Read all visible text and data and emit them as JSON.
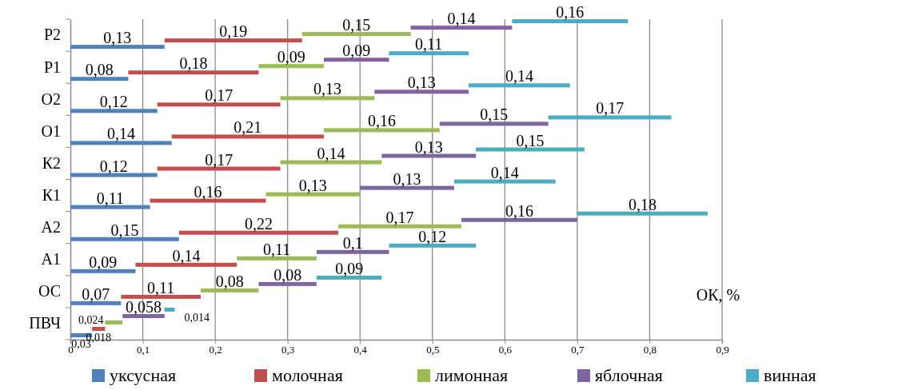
{
  "chart_data": {
    "type": "bar",
    "orientation": "horizontal",
    "stacked": true,
    "xlabel": "ОК, %",
    "categories": [
      "Р2",
      "Р1",
      "О2",
      "О1",
      "К2",
      "К1",
      "А2",
      "А1",
      "ОС",
      "ПВЧ"
    ],
    "series": [
      {
        "name": "уксусная",
        "color": "#4f81bd",
        "values": [
          0.13,
          0.08,
          0.12,
          0.14,
          0.12,
          0.11,
          0.15,
          0.09,
          0.07,
          0.03
        ],
        "value_labels": [
          "0,13",
          "0,08",
          "0,12",
          "0,14",
          "0,12",
          "0,11",
          "0,15",
          "0,09",
          "0,07",
          "0,03"
        ]
      },
      {
        "name": "молочная",
        "color": "#c0504d",
        "values": [
          0.19,
          0.18,
          0.17,
          0.21,
          0.17,
          0.16,
          0.22,
          0.14,
          0.11,
          0.018
        ],
        "value_labels": [
          "0,19",
          "0,18",
          "0,17",
          "0,21",
          "0,17",
          "0,16",
          "0,22",
          "0,14",
          "0,11",
          "0,018"
        ]
      },
      {
        "name": "лимонная",
        "color": "#9bbb59",
        "values": [
          0.15,
          0.09,
          0.13,
          0.16,
          0.14,
          0.13,
          0.17,
          0.11,
          0.08,
          0.024
        ],
        "value_labels": [
          "0,15",
          "0,09",
          "0,13",
          "0,16",
          "0,14",
          "0,13",
          "0,17",
          "0,11",
          "0,08",
          "0,024"
        ]
      },
      {
        "name": "яблочная",
        "color": "#8064a2",
        "values": [
          0.14,
          0.09,
          0.13,
          0.15,
          0.13,
          0.13,
          0.16,
          0.1,
          0.08,
          0.058
        ],
        "value_labels": [
          "0,14",
          "0,09",
          "0,13",
          "0,15",
          "0,13",
          "0,13",
          "0,16",
          "0,1",
          "0,08",
          "0,058"
        ]
      },
      {
        "name": "винная",
        "color": "#4bacc6",
        "values": [
          0.16,
          0.11,
          0.14,
          0.17,
          0.15,
          0.14,
          0.18,
          0.12,
          0.09,
          0.014
        ],
        "value_labels": [
          "0,16",
          "0,11",
          "0,14",
          "0,17",
          "0,15",
          "0,14",
          "0,18",
          "0,12",
          "0,09",
          "0,014"
        ]
      }
    ],
    "xlim": [
      0,
      0.9
    ],
    "xticks": [
      0,
      {
        "value": 0.1,
        "label": "0,1"
      },
      {
        "value": 0.2,
        "label": "0,2"
      },
      {
        "value": 0.3,
        "label": "0,3"
      },
      {
        "value": 0.4,
        "label": "0,4"
      },
      {
        "value": 0.5,
        "label": "0,5"
      },
      {
        "value": 0.6,
        "label": "0,6"
      },
      {
        "value": 0.7,
        "label": "0,7"
      },
      {
        "value": 0.8,
        "label": "0,8"
      },
      {
        "value": 0.9,
        "label": "0,9"
      }
    ],
    "grid": "x",
    "legend": "bottom"
  }
}
